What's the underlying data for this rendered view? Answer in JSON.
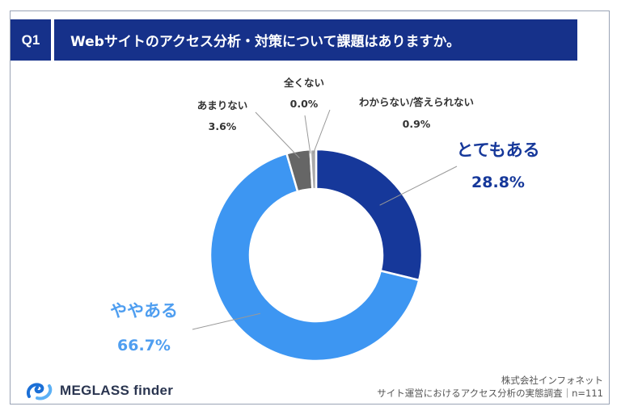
{
  "question": {
    "badge": "Q1",
    "title": "Webサイトのアクセス分析・対策について課題はありますか。"
  },
  "chart_data": {
    "type": "pie",
    "style": "donut",
    "title": "Webサイトのアクセス分析・対策について課題はありますか。",
    "slices": [
      {
        "label": "とてもある",
        "value": 28.8,
        "value_text": "28.8%",
        "color": "#16389a",
        "label_color": "#16389a"
      },
      {
        "label": "ややある",
        "value": 66.7,
        "value_text": "66.7%",
        "color": "#3d96f2",
        "label_color": "#4f9ef0"
      },
      {
        "label": "あまりない",
        "value": 3.6,
        "value_text": "3.6%",
        "color": "#666666",
        "label_color": "#333333"
      },
      {
        "label": "全くない",
        "value": 0.0,
        "value_text": "0.0%",
        "color": "#999999",
        "label_color": "#333333"
      },
      {
        "label": "わからない/答えられない",
        "value": 0.9,
        "value_text": "0.9%",
        "color": "#aaaaaa",
        "label_color": "#333333"
      }
    ],
    "sample_size": "n=111"
  },
  "brand": {
    "logo_text": "MEGLASS finder",
    "logo_icon": "meglass-logo-icon"
  },
  "source": {
    "line1": "株式会社インフォネット",
    "line2": "サイト運営におけるアクセス分析の実態調査｜n=111"
  }
}
